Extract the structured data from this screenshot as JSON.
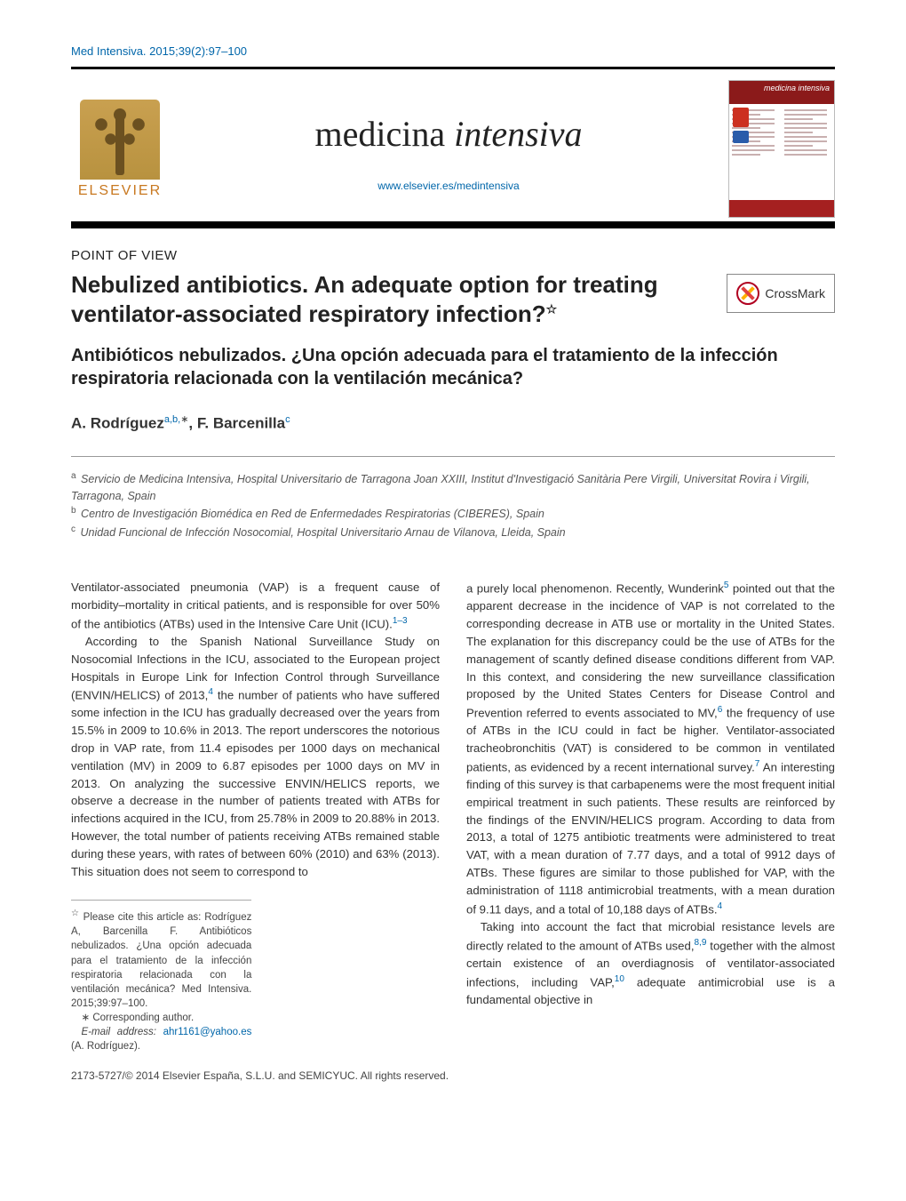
{
  "citation": "Med Intensiva. 2015;39(2):97–100",
  "publisher": {
    "name": "ELSEVIER"
  },
  "journal": {
    "title_plain": "medicina ",
    "title_italic": "intensiva",
    "url": "www.elsevier.es/medintensiva",
    "cover_label": "medicina intensiva"
  },
  "section_label": "POINT OF VIEW",
  "title_en": "Nebulized antibiotics. An adequate option for treating ventilator-associated respiratory infection?",
  "title_star": "☆",
  "title_es": "Antibióticos nebulizados. ¿Una opción adecuada para el tratamiento de la infección respiratoria relacionada con la ventilación mecánica?",
  "crossmark_label": "CrossMark",
  "authors": {
    "a1_name": "A. Rodríguez",
    "a1_sup": "a,b,",
    "a1_ast": "∗",
    "sep": ", ",
    "a2_name": "F. Barcenilla",
    "a2_sup": "c"
  },
  "affiliations": {
    "a_sup": "a",
    "a_text": " Servicio de Medicina Intensiva, Hospital Universitario de Tarragona Joan XXIII, Institut d'Investigació Sanitària Pere Virgili, Universitat Rovira i Virgili, Tarragona, Spain",
    "b_sup": "b",
    "b_text": " Centro de Investigación Biomédica en Red de Enfermedades Respiratorias (CIBERES), Spain",
    "c_sup": "c",
    "c_text": " Unidad Funcional de Infección Nosocomial, Hospital Universitario Arnau de Vilanova, Lleida, Spain"
  },
  "body": {
    "col1": {
      "p1a": "Ventilator-associated pneumonia (VAP) is a frequent cause of morbidity–mortality in critical patients, and is responsible for over 50% of the antibiotics (ATBs) used in the Intensive Care Unit (ICU).",
      "p1_ref": "1–3",
      "p2a": "According to the Spanish National Surveillance Study on Nosocomial Infections in the ICU, associated to the European project Hospitals in Europe Link for Infection Control through Surveillance (ENVIN/HELICS) of 2013,",
      "p2_ref": "4",
      "p2b": " the number of patients who have suffered some infection in the ICU has gradually decreased over the years from 15.5% in 2009 to 10.6% in 2013. The report underscores the notorious drop in VAP rate, from 11.4 episodes per 1000 days on mechanical ventilation (MV) in 2009 to 6.87 episodes per 1000 days on MV in 2013. On analyzing the successive ENVIN/HELICS reports, we observe a decrease in the number of patients treated with ATBs for infections acquired in the ICU, from 25.78% in 2009 to 20.88% in 2013. However, the total number of patients receiving ATBs remained stable during these years, with rates of between 60% (2010) and 63% (2013). This situation does not seem to correspond to"
    },
    "col2": {
      "p1a": "a purely local phenomenon. Recently, Wunderink",
      "p1_ref1": "5",
      "p1b": " pointed out that the apparent decrease in the incidence of VAP is not correlated to the corresponding decrease in ATB use or mortality in the United States. The explanation for this discrepancy could be the use of ATBs for the management of scantly defined disease conditions different from VAP. In this context, and considering the new surveillance classification proposed by the United States Centers for Disease Control and Prevention referred to events associated to MV,",
      "p1_ref2": "6",
      "p1c": " the frequency of use of ATBs in the ICU could in fact be higher. Ventilator-associated tracheobronchitis (VAT) is considered to be common in ventilated patients, as evidenced by a recent international survey.",
      "p1_ref3": "7",
      "p1d": " An interesting finding of this survey is that carbapenems were the most frequent initial empirical treatment in such patients. These results are reinforced by the findings of the ENVIN/HELICS program. According to data from 2013, a total of 1275 antibiotic treatments were administered to treat VAT, with a mean duration of 7.77 days, and a total of 9912 days of ATBs. These figures are similar to those published for VAP, with the administration of 1118 antimicrobial treatments, with a mean duration of 9.11 days, and a total of 10,188 days of ATBs.",
      "p1_ref4": "4",
      "p2a": "Taking into account the fact that microbial resistance levels are directly related to the amount of ATBs used,",
      "p2_ref1": "8,9",
      "p2b": " together with the almost certain existence of an overdiagnosis of ventilator-associated infections, including VAP,",
      "p2_ref2": "10",
      "p2c": " adequate antimicrobial use is a fundamental objective in"
    }
  },
  "footnotes": {
    "cite_star": "☆",
    "cite_text": " Please cite this article as: Rodríguez A, Barcenilla F. Antibióticos nebulizados. ¿Una opción adecuada para el tratamiento de la infección respiratoria relacionada con la ventilación mecánica? Med Intensiva. 2015;39:97–100.",
    "corr_mark": "∗",
    "corr_text": " Corresponding author.",
    "email_label": "E-mail address: ",
    "email": "ahr1161@yahoo.es",
    "email_who": " (A. Rodríguez)."
  },
  "copyright": "2173-5727/© 2014 Elsevier España, S.L.U. and SEMICYUC. All rights reserved.",
  "colors": {
    "link": "#0066aa",
    "elsevier_orange": "#c87820",
    "cover_red": "#8b1a1a"
  }
}
